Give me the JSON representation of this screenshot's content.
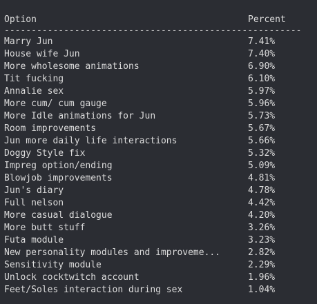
{
  "table": {
    "header": {
      "option": "Option",
      "percent": "Percent"
    },
    "separator": "-------------------------------------------------------",
    "rows": [
      {
        "option": "Marry Jun",
        "percent": "7.41%"
      },
      {
        "option": "House wife Jun",
        "percent": "7.40%"
      },
      {
        "option": "More wholesome animations",
        "percent": "6.90%"
      },
      {
        "option": "Tit fucking",
        "percent": "6.10%"
      },
      {
        "option": "Annalie sex",
        "percent": "5.97%"
      },
      {
        "option": "More cum/ cum gauge",
        "percent": "5.96%"
      },
      {
        "option": "More Idle animations for Jun",
        "percent": "5.73%"
      },
      {
        "option": "Room improvements",
        "percent": "5.67%"
      },
      {
        "option": "Jun more daily life interactions",
        "percent": "5.66%"
      },
      {
        "option": "Doggy Style fix",
        "percent": "5.32%"
      },
      {
        "option": "Impreg option/ending",
        "percent": "5.09%"
      },
      {
        "option": "Blowjob improvements",
        "percent": "4.81%"
      },
      {
        "option": "Jun's diary",
        "percent": "4.78%"
      },
      {
        "option": "Full nelson",
        "percent": "4.42%"
      },
      {
        "option": "More casual dialogue",
        "percent": "4.20%"
      },
      {
        "option": "More butt stuff",
        "percent": "3.26%"
      },
      {
        "option": "Futa module",
        "percent": "3.23%"
      },
      {
        "option": "New personality modules and improveme...",
        "percent": "2.82%"
      },
      {
        "option": "Sensitivity module",
        "percent": "2.29%"
      },
      {
        "option": "Unlock cocktwitch account",
        "percent": "1.96%"
      },
      {
        "option": "Feet/Soles interaction during sex",
        "percent": "1.04%"
      }
    ]
  }
}
